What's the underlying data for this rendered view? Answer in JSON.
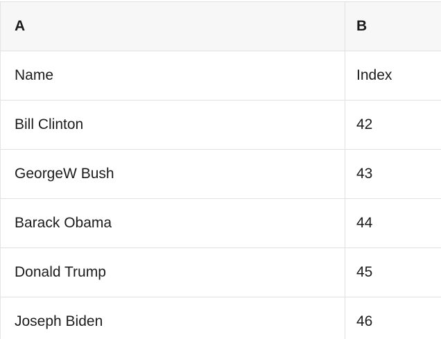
{
  "table": {
    "columns": [
      {
        "label": "A"
      },
      {
        "label": "B"
      }
    ],
    "rows": [
      [
        "Name",
        "Index"
      ],
      [
        "Bill Clinton",
        "42"
      ],
      [
        "GeorgeW Bush",
        "43"
      ],
      [
        "Barack Obama",
        "44"
      ],
      [
        "Donald Trump",
        "45"
      ],
      [
        "Joseph Biden",
        "46"
      ]
    ]
  },
  "colors": {
    "header_bg": "#f7f7f7",
    "row_bg": "#ffffff",
    "border": "#e0e0e0",
    "text": "#1b1b1b"
  }
}
